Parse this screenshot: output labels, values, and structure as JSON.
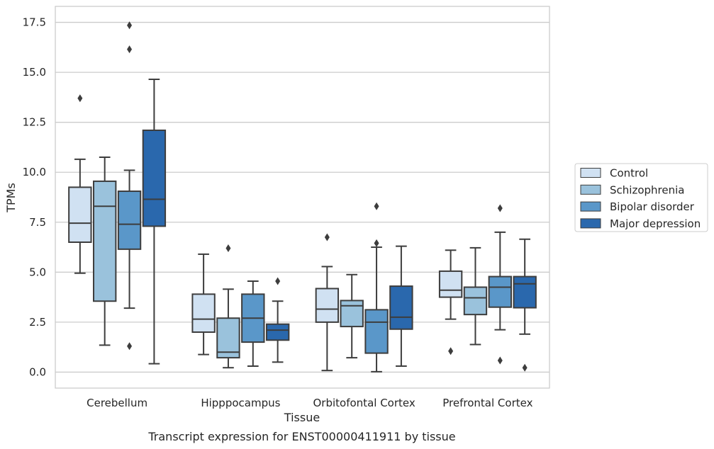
{
  "caption": "Transcript expression for ENST00000411911 by tissue",
  "chart_data": {
    "type": "box",
    "xlabel": "Tissue",
    "ylabel": "TPMs",
    "ylim": [
      -0.8,
      18.3
    ],
    "yticks": [
      0.0,
      2.5,
      5.0,
      7.5,
      10.0,
      12.5,
      15.0,
      17.5
    ],
    "ytick_labels": [
      "0.0",
      "2.5",
      "5.0",
      "7.5",
      "10.0",
      "12.5",
      "15.0",
      "17.5"
    ],
    "grid": "horizontal",
    "legend_position": "right",
    "categories": [
      "Cerebellum",
      "Hipppocampus",
      "Orbitofontal Cortex",
      "Prefrontal Cortex"
    ],
    "series": [
      {
        "name": "Control",
        "color": "#d0e1f2",
        "boxes": [
          {
            "whislo": 4.95,
            "q1": 6.5,
            "med": 7.45,
            "q3": 9.25,
            "whishi": 10.65,
            "fliers": [
              13.7
            ]
          },
          {
            "whislo": 0.88,
            "q1": 2.0,
            "med": 2.65,
            "q3": 3.9,
            "whishi": 5.9,
            "fliers": []
          },
          {
            "whislo": 0.08,
            "q1": 2.5,
            "med": 3.15,
            "q3": 4.18,
            "whishi": 5.28,
            "fliers": [
              6.75
            ]
          },
          {
            "whislo": 2.65,
            "q1": 3.75,
            "med": 4.1,
            "q3": 5.05,
            "whishi": 6.1,
            "fliers": [
              1.05
            ]
          }
        ]
      },
      {
        "name": "Schizophrenia",
        "color": "#9ac2dc",
        "boxes": [
          {
            "whislo": 1.35,
            "q1": 3.55,
            "med": 8.3,
            "q3": 9.55,
            "whishi": 10.75,
            "fliers": []
          },
          {
            "whislo": 0.22,
            "q1": 0.72,
            "med": 1.0,
            "q3": 2.7,
            "whishi": 4.15,
            "fliers": [
              6.2
            ]
          },
          {
            "whislo": 0.72,
            "q1": 2.28,
            "med": 3.32,
            "q3": 3.58,
            "whishi": 4.88,
            "fliers": []
          },
          {
            "whislo": 1.38,
            "q1": 2.88,
            "med": 3.72,
            "q3": 4.25,
            "whishi": 6.22,
            "fliers": []
          }
        ]
      },
      {
        "name": "Bipolar disorder",
        "color": "#5a97c9",
        "boxes": [
          {
            "whislo": 3.2,
            "q1": 6.15,
            "med": 7.4,
            "q3": 9.05,
            "whishi": 10.1,
            "fliers": [
              1.3,
              16.15,
              17.35
            ]
          },
          {
            "whislo": 0.3,
            "q1": 1.5,
            "med": 2.7,
            "q3": 3.9,
            "whishi": 4.55,
            "fliers": []
          },
          {
            "whislo": 0.02,
            "q1": 0.95,
            "med": 2.5,
            "q3": 3.12,
            "whishi": 6.25,
            "fliers": [
              6.45,
              8.3
            ]
          },
          {
            "whislo": 2.12,
            "q1": 3.25,
            "med": 4.25,
            "q3": 4.78,
            "whishi": 7.0,
            "fliers": [
              0.58,
              8.2
            ]
          }
        ]
      },
      {
        "name": "Major depression",
        "color": "#2a68ad",
        "boxes": [
          {
            "whislo": 0.42,
            "q1": 7.3,
            "med": 8.65,
            "q3": 12.1,
            "whishi": 14.65,
            "fliers": []
          },
          {
            "whislo": 0.5,
            "q1": 1.6,
            "med": 2.1,
            "q3": 2.4,
            "whishi": 3.55,
            "fliers": [
              4.55
            ]
          },
          {
            "whislo": 0.3,
            "q1": 2.15,
            "med": 2.75,
            "q3": 4.3,
            "whishi": 6.3,
            "fliers": []
          },
          {
            "whislo": 1.9,
            "q1": 3.22,
            "med": 4.42,
            "q3": 4.78,
            "whishi": 6.65,
            "fliers": [
              0.22
            ]
          }
        ]
      }
    ]
  }
}
